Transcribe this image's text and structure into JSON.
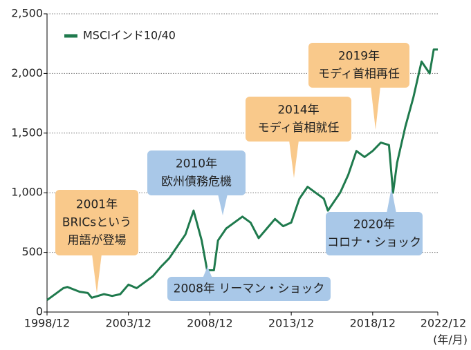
{
  "chart_data": {
    "type": "line",
    "x": [
      "1998/12",
      "1999/06",
      "1999/12",
      "2000/03",
      "2000/12",
      "2001/06",
      "2001/09",
      "2002/06",
      "2002/12",
      "2003/06",
      "2003/12",
      "2004/06",
      "2004/12",
      "2005/06",
      "2005/12",
      "2006/06",
      "2006/12",
      "2007/06",
      "2007/12",
      "2008/06",
      "2008/10",
      "2009/03",
      "2009/06",
      "2009/12",
      "2010/06",
      "2010/12",
      "2011/06",
      "2011/12",
      "2012/06",
      "2012/12",
      "2013/06",
      "2013/12",
      "2014/06",
      "2014/12",
      "2015/06",
      "2015/12",
      "2016/03",
      "2016/12",
      "2017/06",
      "2017/12",
      "2018/06",
      "2018/12",
      "2019/06",
      "2019/12",
      "2020/03",
      "2020/06",
      "2020/12",
      "2021/06",
      "2021/12",
      "2022/06",
      "2022/09",
      "2022/12"
    ],
    "series": [
      {
        "name": "MSCIインド10/40",
        "color": "#1f7a4d",
        "values": [
          100,
          150,
          200,
          210,
          170,
          160,
          120,
          150,
          135,
          150,
          230,
          200,
          250,
          300,
          380,
          450,
          550,
          650,
          850,
          600,
          350,
          350,
          600,
          700,
          750,
          800,
          750,
          620,
          700,
          780,
          720,
          750,
          950,
          1050,
          1000,
          950,
          850,
          1000,
          1150,
          1350,
          1300,
          1350,
          1420,
          1400,
          1000,
          1250,
          1550,
          1800,
          2100,
          2000,
          2200,
          2200
        ]
      }
    ],
    "xticks": [
      "1998/12",
      "2003/12",
      "2008/12",
      "2013/12",
      "2018/12",
      "2022/12"
    ],
    "x_unit_label": "(年/月)",
    "ylim": [
      0,
      2500
    ],
    "yticks": [
      0,
      500,
      {
        "value": 1000,
        "label": "1,000"
      },
      {
        "value": 1500,
        "label": "1,500"
      },
      {
        "value": 2000,
        "label": "2,000"
      },
      {
        "value": 2500,
        "label": "2,500"
      }
    ],
    "grid": true,
    "legend": "upper left",
    "annotations": [
      {
        "lines": [
          "2001年",
          "BRICsという",
          "用語が登場"
        ],
        "color": "#f9c98b"
      },
      {
        "lines": [
          "2010年",
          "欧州債務危機"
        ],
        "color": "#a9c8e8"
      },
      {
        "lines": [
          "2014年",
          "モディ首相就任"
        ],
        "color": "#f9c98b"
      },
      {
        "lines": [
          "2019年",
          "モディ首相再任"
        ],
        "color": "#f9c98b"
      },
      {
        "lines": [
          "2020年",
          "コロナ・ショック"
        ],
        "color": "#a9c8e8"
      },
      {
        "lines": [
          "2008年 リーマン・ショック"
        ],
        "color": "#a9c8e8"
      }
    ]
  }
}
